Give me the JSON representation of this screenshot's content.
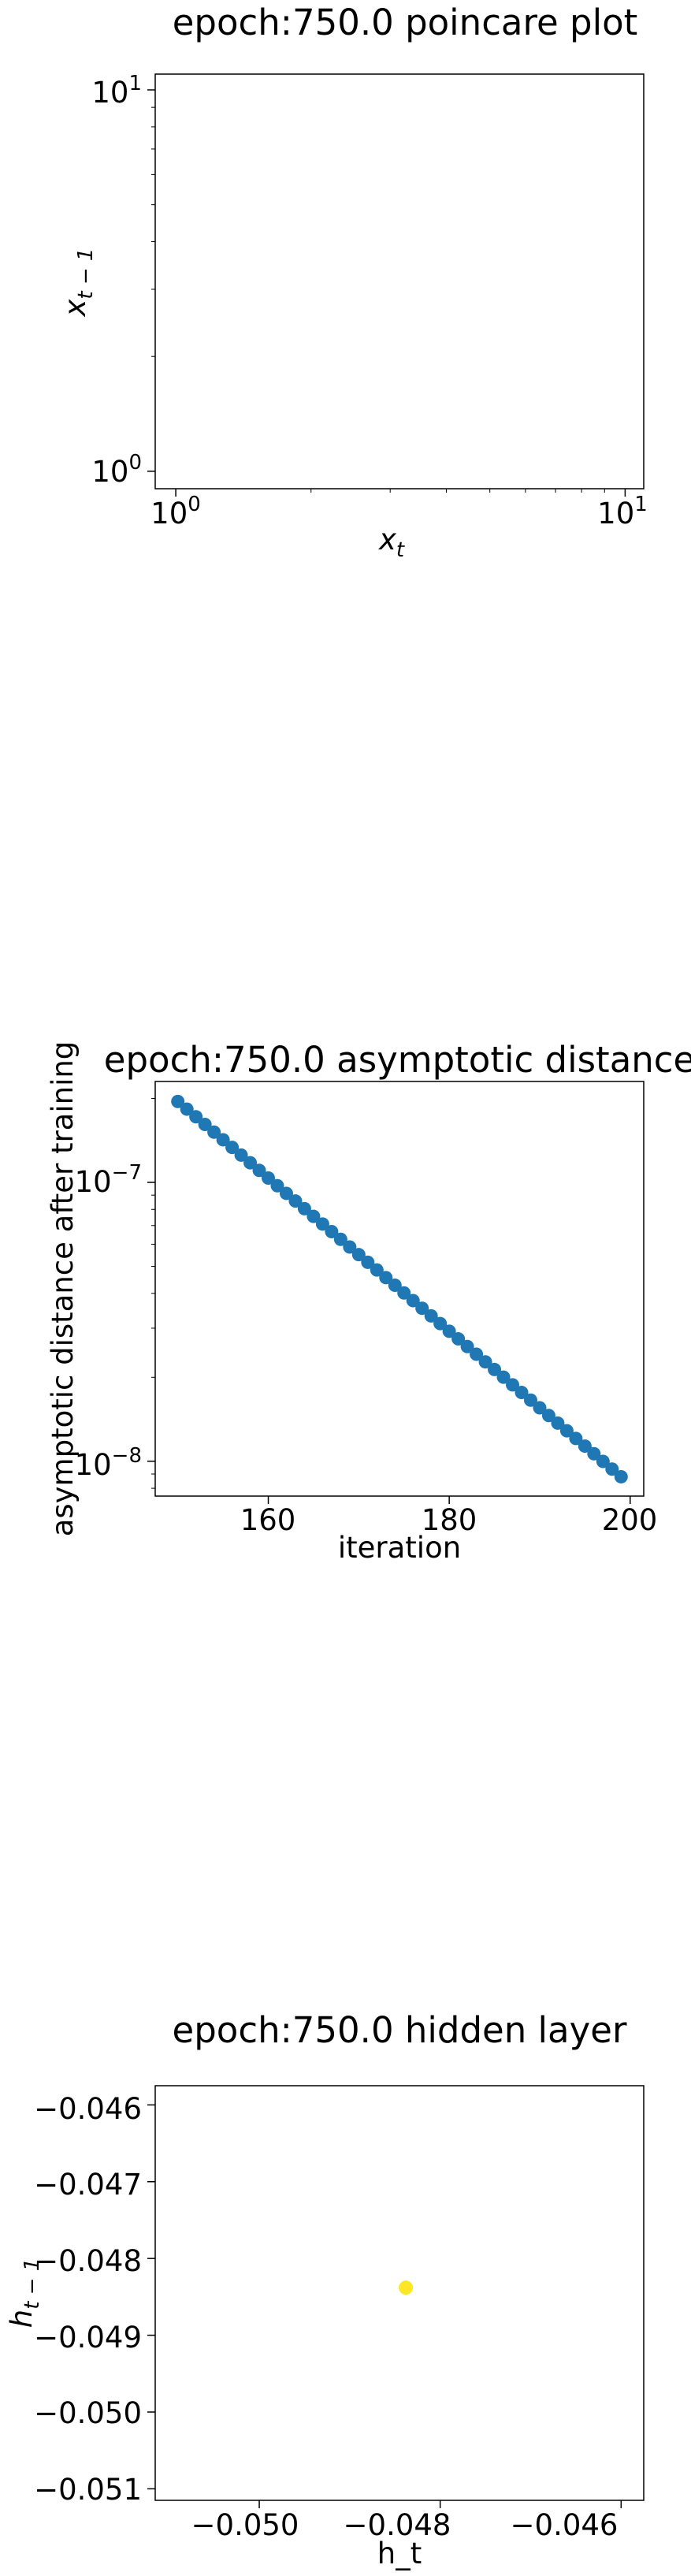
{
  "charts": {
    "poincare": {
      "chart_data": {
        "type": "scatter",
        "title": "epoch:750.0 poincare plot",
        "xlabel": "x",
        "xlabel_sub": "t",
        "ylabel": "x",
        "ylabel_sub": "t − 1",
        "xscale": "log",
        "yscale": "log",
        "xlim": [
          0.9,
          11
        ],
        "ylim": [
          0.9,
          11
        ],
        "x_ticks": [
          {
            "value": 1,
            "base": "10",
            "exp": "0"
          },
          {
            "value": 10,
            "base": "10",
            "exp": "1"
          }
        ],
        "y_ticks": [
          {
            "value": 1,
            "base": "10",
            "exp": "0"
          },
          {
            "value": 10,
            "base": "10",
            "exp": "1"
          }
        ],
        "points": []
      }
    },
    "asymptotic": {
      "chart_data": {
        "type": "scatter",
        "title": "epoch:750.0 asymptotic distance",
        "xlabel": "iteration",
        "ylabel": "asymptotic distance after training",
        "yscale": "log",
        "xlim": [
          147.5,
          201.5
        ],
        "ylim": [
          7.5e-09,
          2.3e-07
        ],
        "x_ticks": [
          {
            "value": 160,
            "label": "160"
          },
          {
            "value": 180,
            "label": "180"
          },
          {
            "value": 200,
            "label": "200"
          }
        ],
        "y_ticks": [
          {
            "value": 1e-07,
            "base": "10",
            "exp": "−7"
          },
          {
            "value": 1e-08,
            "base": "10",
            "exp": "−8"
          }
        ],
        "color": "#1f77b4",
        "x_start": 150,
        "x_end": 199,
        "y_start": 1.95e-07,
        "y_end": 8.8e-09
      }
    },
    "hidden": {
      "chart_data": {
        "type": "scatter",
        "title": "epoch:750.0 hidden layer",
        "xlabel": "h_t",
        "ylabel": "h",
        "ylabel_sub": "t − 1",
        "xlim": [
          -0.05115,
          -0.04575
        ],
        "ylim": [
          -0.05115,
          -0.04575
        ],
        "x_ticks": [
          {
            "value": -0.05,
            "label": "−0.050"
          },
          {
            "value": -0.048,
            "label": "−0.048"
          },
          {
            "value": -0.046,
            "label": "−0.046"
          }
        ],
        "y_ticks": [
          {
            "value": -0.046,
            "label": "−0.046"
          },
          {
            "value": -0.047,
            "label": "−0.047"
          },
          {
            "value": -0.048,
            "label": "−0.048"
          },
          {
            "value": -0.049,
            "label": "−0.049"
          },
          {
            "value": -0.05,
            "label": "−0.050"
          },
          {
            "value": -0.051,
            "label": "−0.051"
          }
        ],
        "points": [
          {
            "x": -0.04838,
            "y": -0.04838
          }
        ],
        "color": "#fde725"
      }
    }
  }
}
